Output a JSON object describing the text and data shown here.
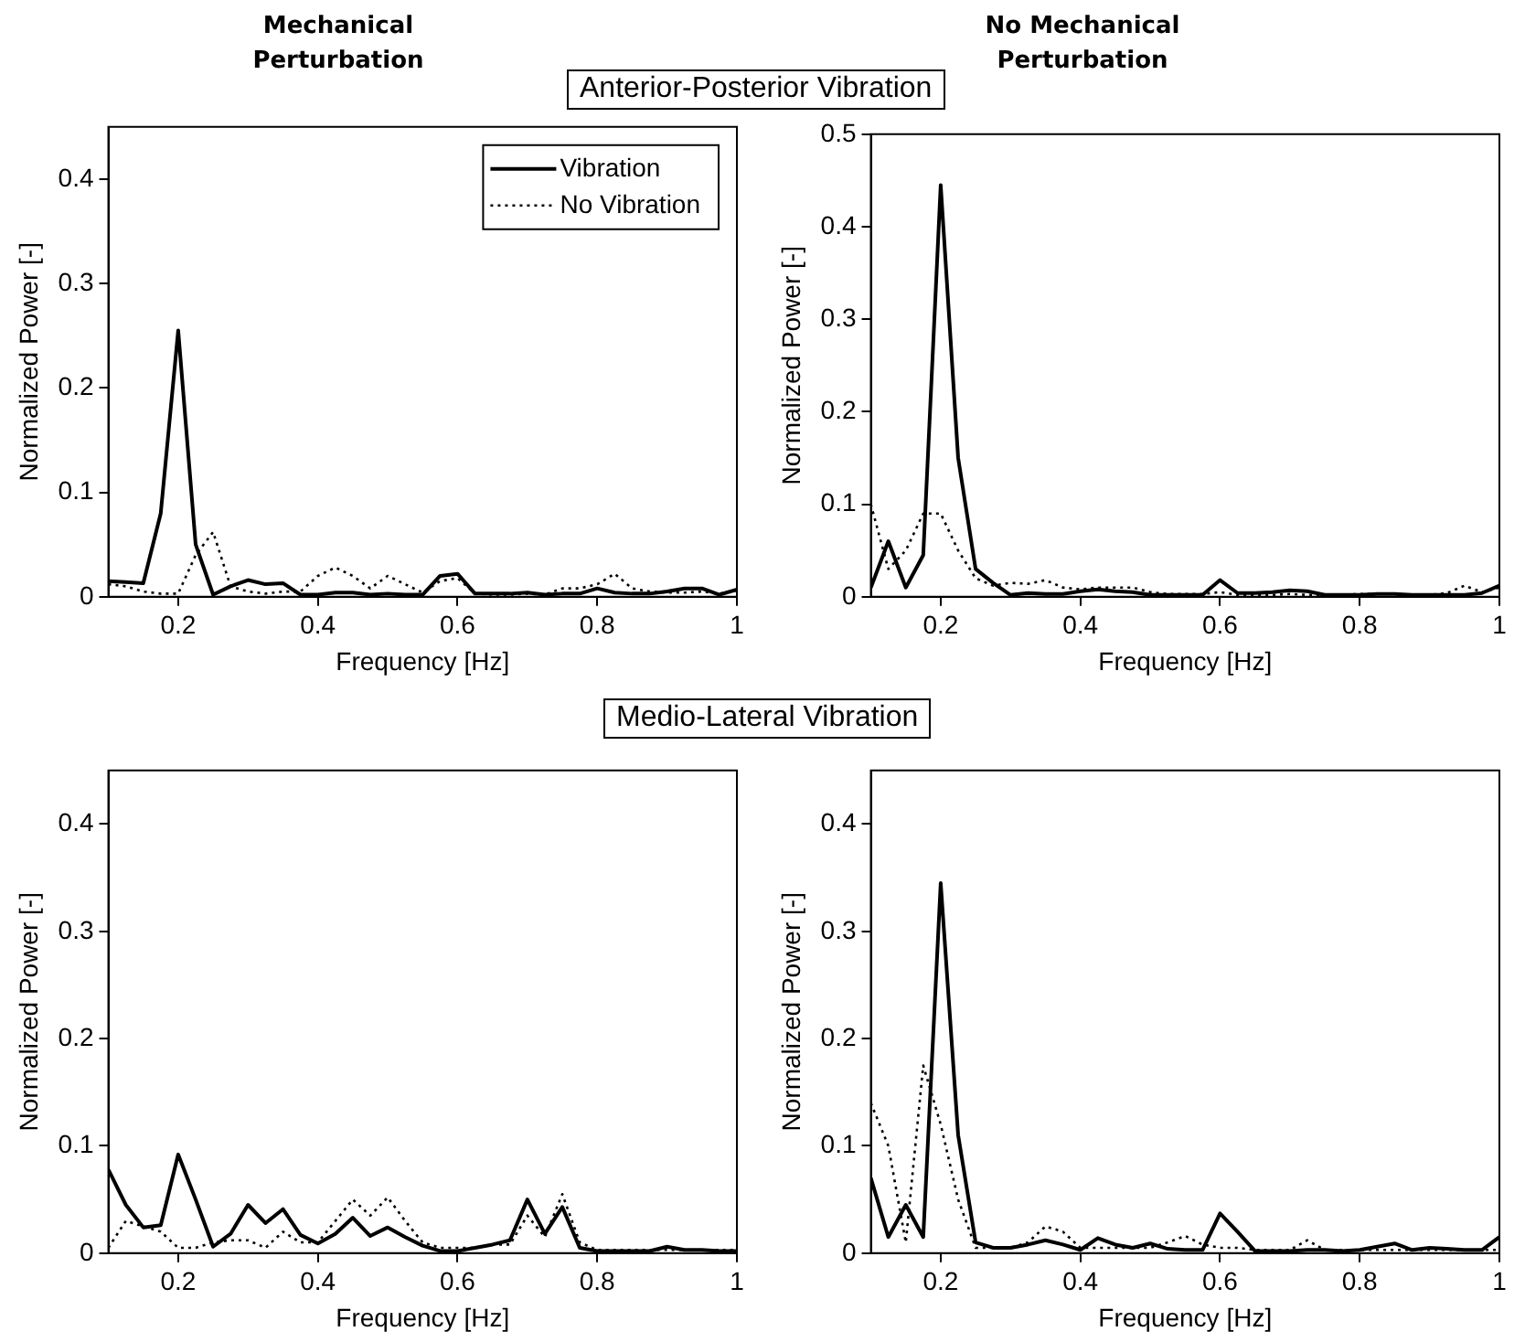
{
  "chart_data": [
    {
      "type": "line",
      "title": "Mechanical Perturbation",
      "annotations": [
        "Anterior-Posterior Vibration"
      ],
      "xlabel": "Frequency [Hz]",
      "ylabel": "Normalized Power [-]",
      "x": [
        0.1,
        0.125,
        0.15,
        0.175,
        0.2,
        0.225,
        0.25,
        0.275,
        0.3,
        0.325,
        0.35,
        0.375,
        0.4,
        0.425,
        0.45,
        0.475,
        0.5,
        0.525,
        0.55,
        0.575,
        0.6,
        0.625,
        0.65,
        0.675,
        0.7,
        0.725,
        0.75,
        0.775,
        0.8,
        0.825,
        0.85,
        0.875,
        0.9,
        0.925,
        0.95,
        0.975,
        1
      ],
      "xlim": [
        0.1,
        1
      ],
      "xticks": [
        0.2,
        0.4,
        0.6,
        0.8,
        1
      ],
      "ylim": [
        0,
        0.45
      ],
      "yticks": [
        0,
        0.1,
        0.2,
        0.3,
        0.4
      ],
      "legend": "top right",
      "marker": "none",
      "series": [
        {
          "name": "Vibration",
          "color": "#000000",
          "line_style": "solid",
          "values": [
            0.015,
            0.014,
            0.013,
            0.08,
            0.255,
            0.05,
            0.002,
            0.01,
            0.016,
            0.012,
            0.013,
            0.002,
            0.002,
            0.004,
            0.004,
            0.002,
            0.003,
            0.002,
            0.002,
            0.02,
            0.022,
            0.003,
            0.003,
            0.003,
            0.004,
            0.002,
            0.003,
            0.003,
            0.008,
            0.004,
            0.003,
            0.003,
            0.005,
            0.008,
            0.008,
            0.002,
            0.007
          ]
        },
        {
          "name": "No Vibration",
          "color": "#000000",
          "line_style": "dotted",
          "values": [
            0.012,
            0.01,
            0.005,
            0.003,
            0.003,
            0.04,
            0.062,
            0.01,
            0.005,
            0.003,
            0.005,
            0.005,
            0.02,
            0.028,
            0.02,
            0.008,
            0.02,
            0.012,
            0.004,
            0.015,
            0.018,
            0.003,
            0.002,
            0.002,
            0.003,
            0.002,
            0.008,
            0.008,
            0.012,
            0.022,
            0.008,
            0.005,
            0.004,
            0.004,
            0.005,
            0.003,
            0.006
          ]
        }
      ]
    },
    {
      "type": "line",
      "title": "No Mechanical Perturbation",
      "xlabel": "Frequency [Hz]",
      "ylabel": "Normalized Power [-]",
      "x": [
        0.1,
        0.125,
        0.15,
        0.175,
        0.2,
        0.225,
        0.25,
        0.275,
        0.3,
        0.325,
        0.35,
        0.375,
        0.4,
        0.425,
        0.45,
        0.475,
        0.5,
        0.525,
        0.55,
        0.575,
        0.6,
        0.625,
        0.65,
        0.675,
        0.7,
        0.725,
        0.75,
        0.775,
        0.8,
        0.825,
        0.85,
        0.875,
        0.9,
        0.925,
        0.95,
        0.975,
        1
      ],
      "xlim": [
        0.1,
        1
      ],
      "xticks": [
        0.2,
        0.4,
        0.6,
        0.8,
        1
      ],
      "ylim": [
        0,
        0.5
      ],
      "yticks": [
        0,
        0.1,
        0.2,
        0.3,
        0.4,
        0.5
      ],
      "marker": "none",
      "series": [
        {
          "color": "#000000",
          "line_style": "solid",
          "values": [
            0.01,
            0.06,
            0.01,
            0.045,
            0.445,
            0.15,
            0.03,
            0.015,
            0.002,
            0.004,
            0.003,
            0.003,
            0.006,
            0.008,
            0.006,
            0.005,
            0.002,
            0.002,
            0.002,
            0.002,
            0.018,
            0.004,
            0.004,
            0.005,
            0.007,
            0.006,
            0.002,
            0.002,
            0.002,
            0.003,
            0.003,
            0.002,
            0.002,
            0.002,
            0.002,
            0.004,
            0.012
          ]
        },
        {
          "color": "#000000",
          "line_style": "dotted",
          "values": [
            0.1,
            0.03,
            0.05,
            0.09,
            0.09,
            0.05,
            0.02,
            0.012,
            0.015,
            0.014,
            0.018,
            0.01,
            0.008,
            0.01,
            0.01,
            0.01,
            0.005,
            0.003,
            0.003,
            0.003,
            0.005,
            0.002,
            0.002,
            0.002,
            0.003,
            0.002,
            0.002,
            0.002,
            0.003,
            0.003,
            0.003,
            0.002,
            0.002,
            0.004,
            0.012,
            0.005,
            0.01
          ]
        }
      ]
    },
    {
      "type": "line",
      "annotations": [
        "Medio-Lateral Vibration"
      ],
      "xlabel": "Frequency [Hz]",
      "ylabel": "Normalized Power [-]",
      "x": [
        0.1,
        0.125,
        0.15,
        0.175,
        0.2,
        0.225,
        0.25,
        0.275,
        0.3,
        0.325,
        0.35,
        0.375,
        0.4,
        0.425,
        0.45,
        0.475,
        0.5,
        0.525,
        0.55,
        0.575,
        0.6,
        0.625,
        0.65,
        0.675,
        0.7,
        0.725,
        0.75,
        0.775,
        0.8,
        0.825,
        0.85,
        0.875,
        0.9,
        0.925,
        0.95,
        0.975,
        1
      ],
      "xlim": [
        0.1,
        1
      ],
      "xticks": [
        0.2,
        0.4,
        0.6,
        0.8,
        1
      ],
      "ylim": [
        0,
        0.45
      ],
      "yticks": [
        0,
        0.1,
        0.2,
        0.3,
        0.4
      ],
      "marker": "none",
      "series": [
        {
          "color": "#000000",
          "line_style": "solid",
          "values": [
            0.078,
            0.045,
            0.024,
            0.026,
            0.092,
            0.05,
            0.006,
            0.018,
            0.045,
            0.028,
            0.041,
            0.017,
            0.009,
            0.018,
            0.033,
            0.016,
            0.024,
            0.015,
            0.007,
            0.002,
            0.002,
            0.005,
            0.008,
            0.012,
            0.05,
            0.018,
            0.043,
            0.005,
            0.002,
            0.002,
            0.002,
            0.002,
            0.006,
            0.003,
            0.003,
            0.002,
            0.002
          ]
        },
        {
          "color": "#000000",
          "line_style": "dotted",
          "values": [
            0.005,
            0.03,
            0.025,
            0.02,
            0.005,
            0.005,
            0.01,
            0.012,
            0.012,
            0.005,
            0.02,
            0.01,
            0.01,
            0.03,
            0.05,
            0.035,
            0.052,
            0.03,
            0.01,
            0.005,
            0.005,
            0.005,
            0.008,
            0.008,
            0.035,
            0.015,
            0.055,
            0.01,
            0.003,
            0.003,
            0.003,
            0.003,
            0.003,
            0.003,
            0.003,
            0.003,
            0.003
          ]
        }
      ]
    },
    {
      "type": "line",
      "xlabel": "Frequency [Hz]",
      "ylabel": "Normalized Power [-]",
      "x": [
        0.1,
        0.125,
        0.15,
        0.175,
        0.2,
        0.225,
        0.25,
        0.275,
        0.3,
        0.325,
        0.35,
        0.375,
        0.4,
        0.425,
        0.45,
        0.475,
        0.5,
        0.525,
        0.55,
        0.575,
        0.6,
        0.625,
        0.65,
        0.675,
        0.7,
        0.725,
        0.75,
        0.775,
        0.8,
        0.825,
        0.85,
        0.875,
        0.9,
        0.925,
        0.95,
        0.975,
        1
      ],
      "xlim": [
        0.1,
        1
      ],
      "xticks": [
        0.2,
        0.4,
        0.6,
        0.8,
        1
      ],
      "ylim": [
        0,
        0.45
      ],
      "yticks": [
        0,
        0.1,
        0.2,
        0.3,
        0.4
      ],
      "marker": "none",
      "series": [
        {
          "color": "#000000",
          "line_style": "solid",
          "values": [
            0.07,
            0.015,
            0.045,
            0.015,
            0.345,
            0.11,
            0.01,
            0.005,
            0.005,
            0.008,
            0.012,
            0.008,
            0.003,
            0.014,
            0.008,
            0.005,
            0.009,
            0.004,
            0.003,
            0.003,
            0.037,
            0.02,
            0.002,
            0.002,
            0.002,
            0.003,
            0.003,
            0.002,
            0.003,
            0.006,
            0.009,
            0.003,
            0.005,
            0.004,
            0.003,
            0.003,
            0.015
          ]
        },
        {
          "color": "#000000",
          "line_style": "dotted",
          "values": [
            0.14,
            0.1,
            0.01,
            0.175,
            0.12,
            0.05,
            0.005,
            0.005,
            0.005,
            0.01,
            0.025,
            0.02,
            0.005,
            0.005,
            0.005,
            0.005,
            0.005,
            0.01,
            0.016,
            0.008,
            0.005,
            0.005,
            0.003,
            0.003,
            0.003,
            0.012,
            0.003,
            0.003,
            0.003,
            0.003,
            0.003,
            0.003,
            0.003,
            0.003,
            0.003,
            0.003,
            0.003
          ]
        }
      ]
    }
  ]
}
